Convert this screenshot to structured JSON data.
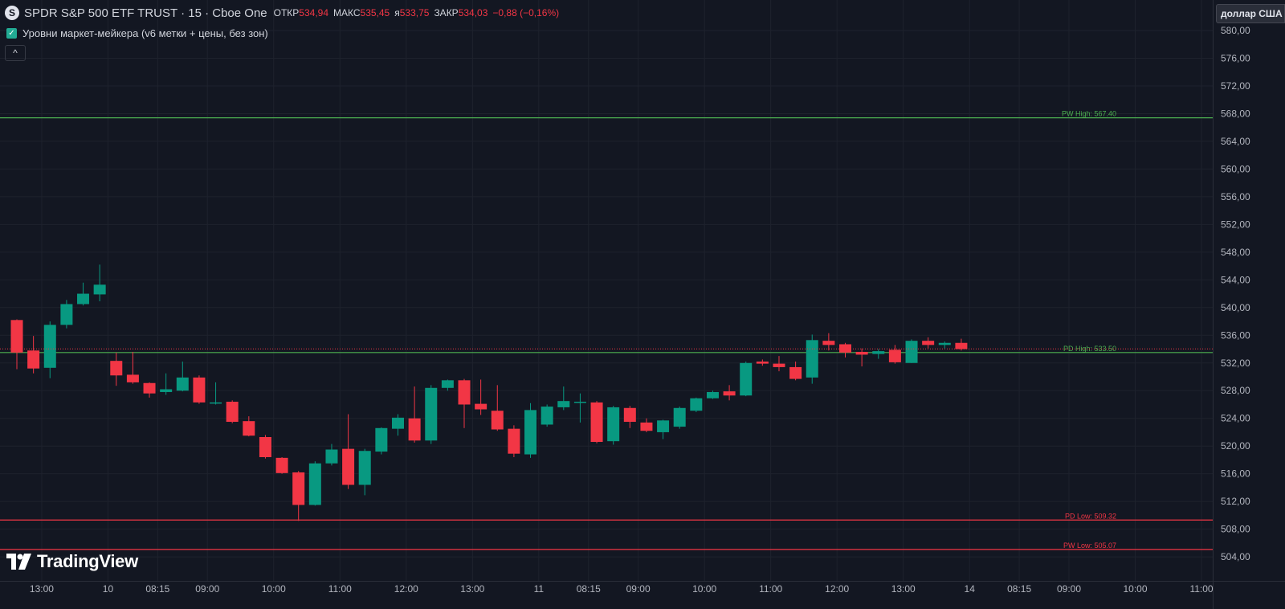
{
  "header": {
    "symbol_icon": "S",
    "title": "SPDR S&P 500 ETF TRUST · 15 · Cboe One",
    "open_label": "ОТКР",
    "open_value": "534,94",
    "high_label": "МАКС",
    "high_value": "535,45",
    "low_label": "я",
    "low_value": "533,75",
    "close_label": "ЗАКР",
    "close_value": "534,03",
    "change": "−0,88 (−0,16%)"
  },
  "indicator": {
    "label": "Уровни маркет-мейкера (v6 метки + цены, без зон)",
    "checked": true
  },
  "currency_button": "доллар США",
  "logo_text": "TradingView",
  "colors": {
    "background": "#131722",
    "up": "#089981",
    "down": "#f23645",
    "pw_high": "#4caf50",
    "levels_low": "#f23645"
  },
  "chart_data": {
    "type": "candlestick",
    "y_axis": {
      "min": 502,
      "max": 582.5,
      "ticks": [
        "504,00",
        "508,00",
        "512,00",
        "516,00",
        "520,00",
        "524,00",
        "528,00",
        "532,00",
        "536,00",
        "540,00",
        "544,00",
        "548,00",
        "552,00",
        "556,00",
        "560,00",
        "564,00",
        "568,00",
        "572,00",
        "576,00",
        "580,00"
      ]
    },
    "x_axis": {
      "tick_labels": [
        {
          "i": 1.5,
          "label": "13:00"
        },
        {
          "i": 5.5,
          "label": "10"
        },
        {
          "i": 8.5,
          "label": "08:15"
        },
        {
          "i": 11.5,
          "label": "09:00"
        },
        {
          "i": 15.5,
          "label": "10:00"
        },
        {
          "i": 19.5,
          "label": "11:00"
        },
        {
          "i": 23.5,
          "label": "12:00"
        },
        {
          "i": 27.5,
          "label": "13:00"
        },
        {
          "i": 31.5,
          "label": "11"
        },
        {
          "i": 34.5,
          "label": "08:15"
        },
        {
          "i": 37.5,
          "label": "09:00"
        },
        {
          "i": 41.5,
          "label": "10:00"
        },
        {
          "i": 45.5,
          "label": "11:00"
        },
        {
          "i": 49.5,
          "label": "12:00"
        },
        {
          "i": 53.5,
          "label": "13:00"
        },
        {
          "i": 57.5,
          "label": "14"
        },
        {
          "i": 60.5,
          "label": "08:15"
        },
        {
          "i": 63.5,
          "label": "09:00"
        },
        {
          "i": 67.5,
          "label": "10:00"
        },
        {
          "i": 71.5,
          "label": "11:00"
        }
      ]
    },
    "candles": [
      {
        "o": 538.2,
        "h": 538.3,
        "l": 531.1,
        "c": 533.5
      },
      {
        "o": 533.8,
        "h": 535.9,
        "l": 530.5,
        "c": 531.2
      },
      {
        "o": 531.3,
        "h": 538.0,
        "l": 529.8,
        "c": 537.5
      },
      {
        "o": 537.5,
        "h": 541.1,
        "l": 537.0,
        "c": 540.5
      },
      {
        "o": 540.5,
        "h": 543.6,
        "l": 540.3,
        "c": 542.0
      },
      {
        "o": 541.9,
        "h": 546.2,
        "l": 540.9,
        "c": 543.3
      },
      {
        "o": 532.3,
        "h": 533.5,
        "l": 528.7,
        "c": 530.2
      },
      {
        "o": 530.3,
        "h": 533.6,
        "l": 529.0,
        "c": 529.2
      },
      {
        "o": 529.1,
        "h": 529.2,
        "l": 527.0,
        "c": 527.6
      },
      {
        "o": 527.8,
        "h": 530.5,
        "l": 527.4,
        "c": 528.2
      },
      {
        "o": 528.0,
        "h": 532.2,
        "l": 527.9,
        "c": 529.9
      },
      {
        "o": 529.9,
        "h": 530.2,
        "l": 526.1,
        "c": 526.3
      },
      {
        "o": 526.3,
        "h": 529.2,
        "l": 526.0,
        "c": 526.3
      },
      {
        "o": 526.4,
        "h": 526.6,
        "l": 523.3,
        "c": 523.5
      },
      {
        "o": 523.6,
        "h": 524.3,
        "l": 521.4,
        "c": 521.5
      },
      {
        "o": 521.3,
        "h": 521.6,
        "l": 518.2,
        "c": 518.4
      },
      {
        "o": 518.3,
        "h": 518.4,
        "l": 516.0,
        "c": 516.1
      },
      {
        "o": 516.2,
        "h": 516.4,
        "l": 509.2,
        "c": 511.5
      },
      {
        "o": 511.5,
        "h": 517.8,
        "l": 511.4,
        "c": 517.5
      },
      {
        "o": 517.5,
        "h": 520.3,
        "l": 517.2,
        "c": 519.5
      },
      {
        "o": 519.6,
        "h": 524.6,
        "l": 513.8,
        "c": 514.4
      },
      {
        "o": 514.4,
        "h": 519.6,
        "l": 512.9,
        "c": 519.3
      },
      {
        "o": 519.2,
        "h": 522.7,
        "l": 518.8,
        "c": 522.6
      },
      {
        "o": 522.5,
        "h": 524.6,
        "l": 521.5,
        "c": 524.1
      },
      {
        "o": 524.0,
        "h": 528.6,
        "l": 520.5,
        "c": 520.8
      },
      {
        "o": 520.8,
        "h": 528.8,
        "l": 520.3,
        "c": 528.4
      },
      {
        "o": 528.4,
        "h": 529.6,
        "l": 528.0,
        "c": 529.5
      },
      {
        "o": 529.5,
        "h": 529.7,
        "l": 522.6,
        "c": 526.0
      },
      {
        "o": 526.1,
        "h": 529.6,
        "l": 524.5,
        "c": 525.3
      },
      {
        "o": 525.1,
        "h": 528.8,
        "l": 522.2,
        "c": 522.4
      },
      {
        "o": 522.5,
        "h": 523.0,
        "l": 518.4,
        "c": 518.9
      },
      {
        "o": 518.8,
        "h": 526.2,
        "l": 518.3,
        "c": 525.2
      },
      {
        "o": 523.1,
        "h": 526.0,
        "l": 522.8,
        "c": 525.7
      },
      {
        "o": 525.6,
        "h": 528.6,
        "l": 525.2,
        "c": 526.5
      },
      {
        "o": 526.4,
        "h": 527.6,
        "l": 523.4,
        "c": 526.4
      },
      {
        "o": 526.3,
        "h": 526.5,
        "l": 520.4,
        "c": 520.6
      },
      {
        "o": 520.7,
        "h": 525.8,
        "l": 520.2,
        "c": 525.6
      },
      {
        "o": 525.5,
        "h": 525.8,
        "l": 522.6,
        "c": 523.5
      },
      {
        "o": 523.4,
        "h": 524.0,
        "l": 522.0,
        "c": 522.2
      },
      {
        "o": 522.0,
        "h": 523.8,
        "l": 521.0,
        "c": 523.7
      },
      {
        "o": 522.8,
        "h": 525.7,
        "l": 522.5,
        "c": 525.5
      },
      {
        "o": 525.1,
        "h": 527.0,
        "l": 524.9,
        "c": 526.9
      },
      {
        "o": 526.9,
        "h": 528.0,
        "l": 526.8,
        "c": 527.8
      },
      {
        "o": 527.9,
        "h": 528.8,
        "l": 526.6,
        "c": 527.3
      },
      {
        "o": 527.3,
        "h": 532.2,
        "l": 527.2,
        "c": 532.0
      },
      {
        "o": 532.2,
        "h": 532.5,
        "l": 531.6,
        "c": 531.9
      },
      {
        "o": 531.9,
        "h": 533.0,
        "l": 530.8,
        "c": 531.4
      },
      {
        "o": 531.4,
        "h": 532.2,
        "l": 529.5,
        "c": 529.7
      },
      {
        "o": 529.9,
        "h": 536.1,
        "l": 529.0,
        "c": 535.3
      },
      {
        "o": 535.2,
        "h": 536.3,
        "l": 533.8,
        "c": 534.6
      },
      {
        "o": 534.7,
        "h": 534.9,
        "l": 532.8,
        "c": 533.5
      },
      {
        "o": 533.6,
        "h": 534.1,
        "l": 531.5,
        "c": 533.2
      },
      {
        "o": 533.3,
        "h": 534.0,
        "l": 532.6,
        "c": 533.7
      },
      {
        "o": 533.9,
        "h": 534.6,
        "l": 531.9,
        "c": 532.1
      },
      {
        "o": 532.0,
        "h": 535.4,
        "l": 532.0,
        "c": 535.2
      },
      {
        "o": 535.2,
        "h": 535.7,
        "l": 534.1,
        "c": 534.6
      },
      {
        "o": 534.6,
        "h": 535.1,
        "l": 534.1,
        "c": 534.9
      },
      {
        "o": 534.9,
        "h": 535.5,
        "l": 533.8,
        "c": 534.0
      }
    ],
    "levels": [
      {
        "name": "PW High",
        "label": "PW High: 567.40",
        "value": 567.4,
        "color": "#4caf50"
      },
      {
        "name": "PD High",
        "label": "PD High: 533.50",
        "value": 533.5,
        "color": "#4caf50"
      },
      {
        "name": "PD Low",
        "label": "PD Low: 509.32",
        "value": 509.32,
        "color": "#f23645"
      },
      {
        "name": "PW Low",
        "label": "PW Low: 505.07",
        "value": 505.07,
        "color": "#f23645"
      }
    ],
    "last_price": {
      "value": 534.03,
      "label": "534,03"
    }
  }
}
